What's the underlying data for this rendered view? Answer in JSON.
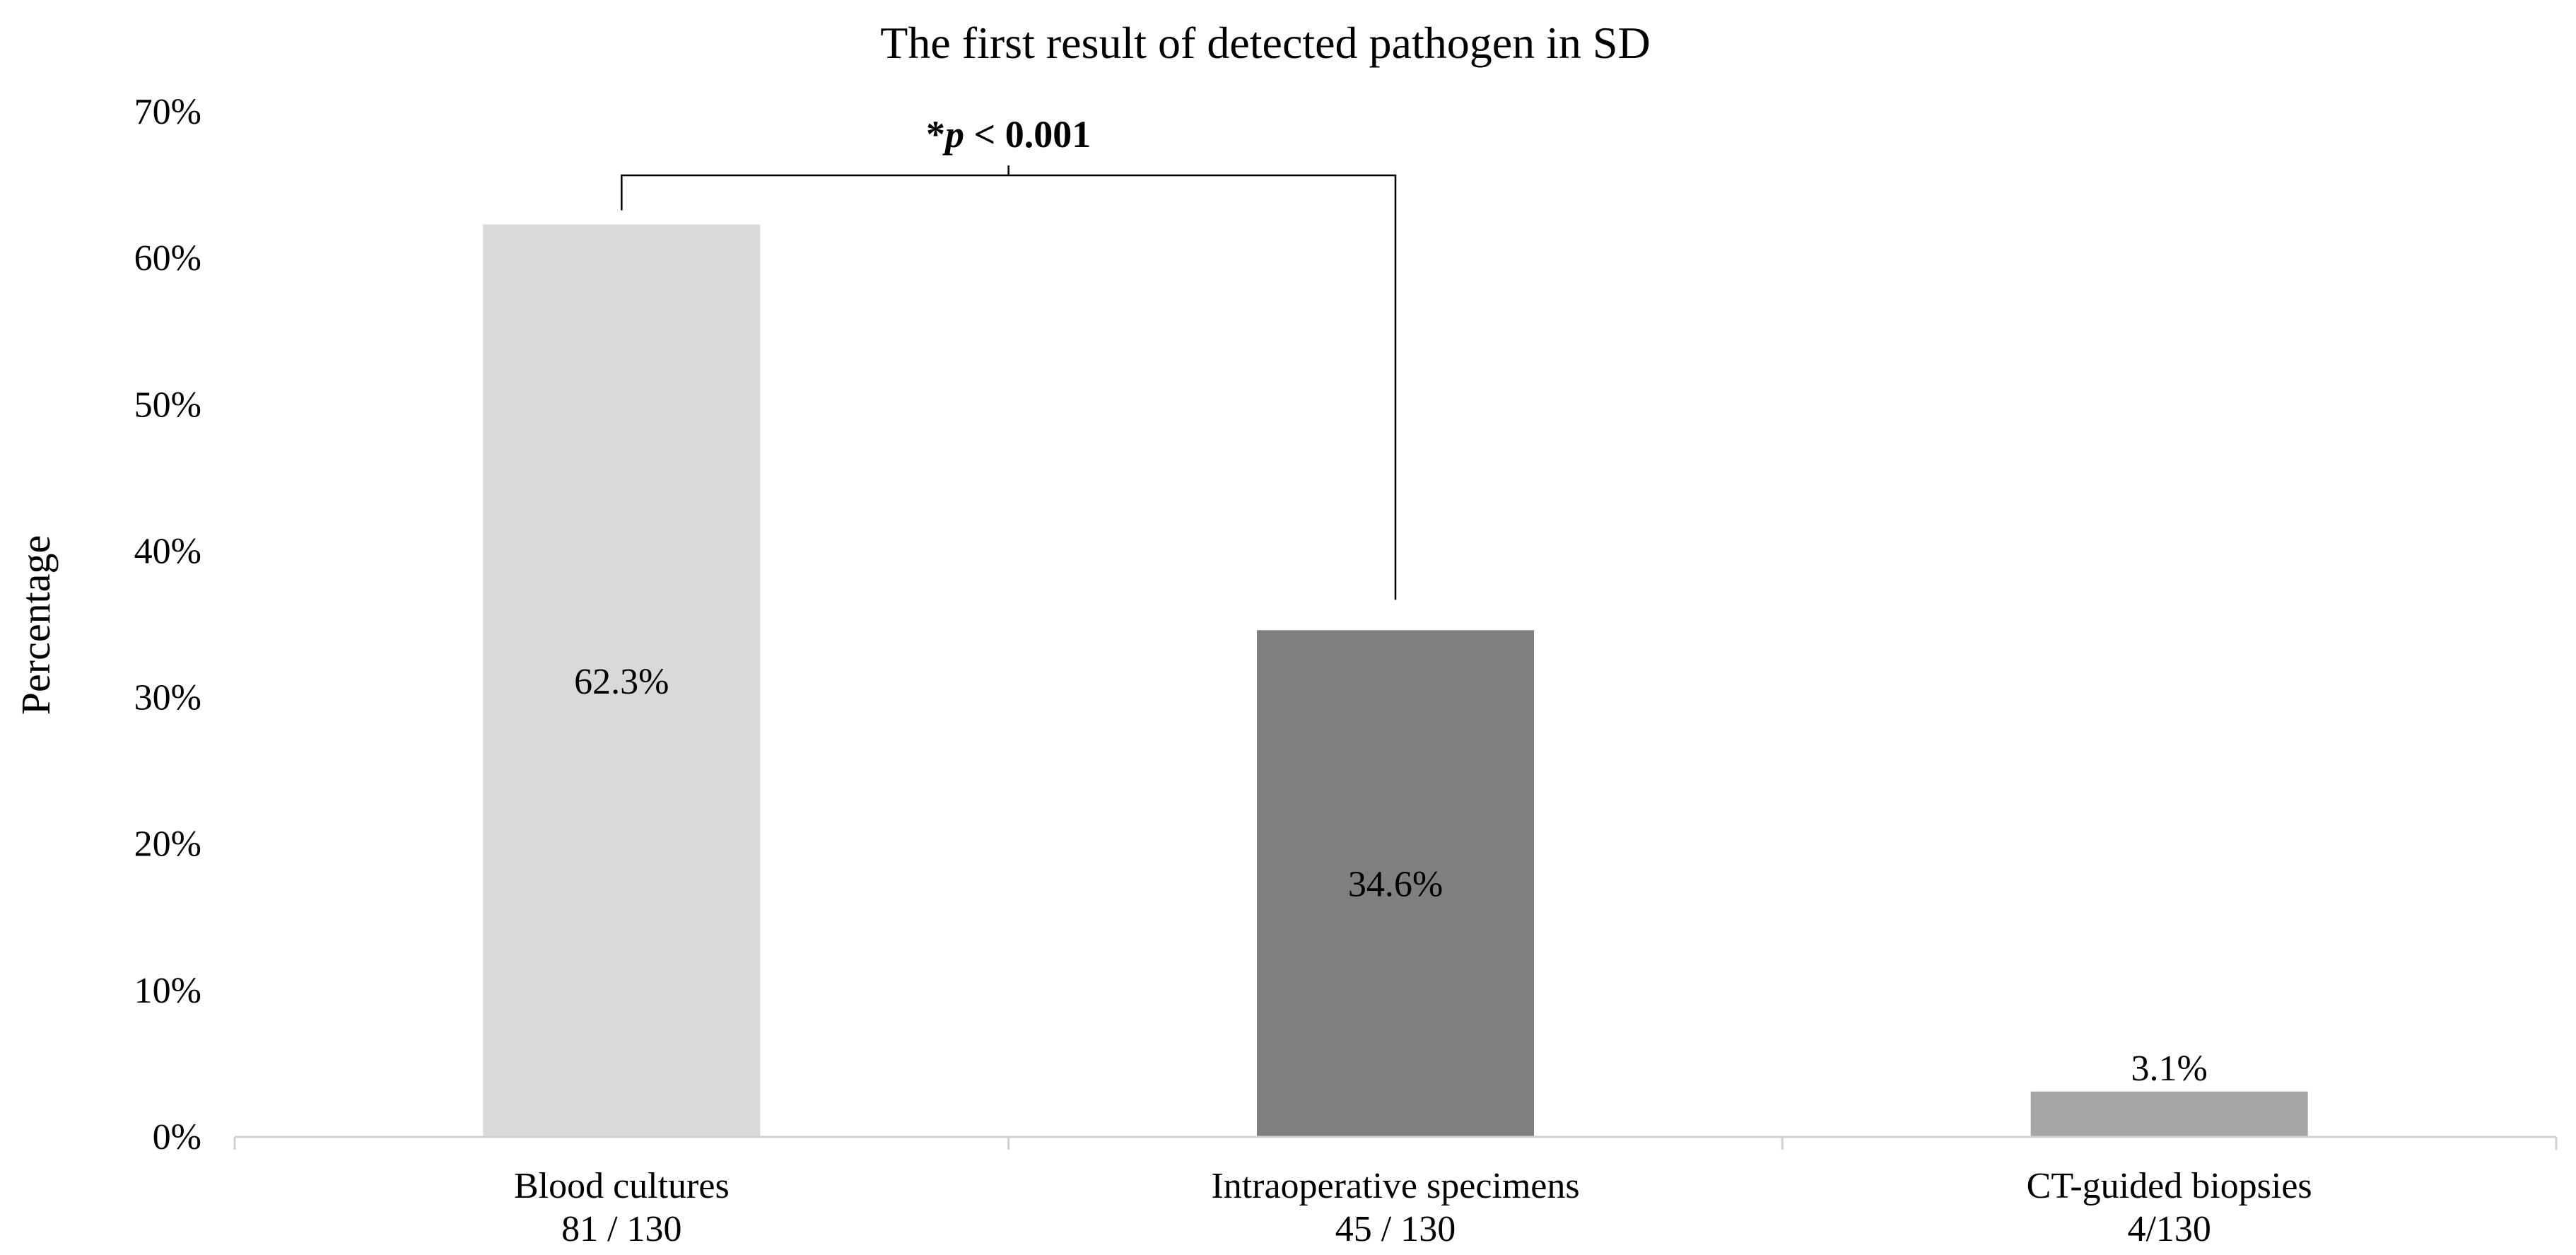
{
  "chart_data": {
    "type": "bar",
    "title": "The first result of detected pathogen in SD",
    "ylabel": "Percentage",
    "xlabel": "",
    "ylim": [
      0,
      70
    ],
    "yticks": [
      0,
      10,
      20,
      30,
      40,
      50,
      60,
      70
    ],
    "ytick_labels": [
      "0%",
      "10%",
      "20%",
      "30%",
      "40%",
      "50%",
      "60%",
      "70%"
    ],
    "grid": false,
    "categories": [
      {
        "name": "Blood cultures",
        "count": "81 / 130"
      },
      {
        "name": "Intraoperative specimens",
        "count": "45 / 130"
      },
      {
        "name": "CT-guided biopsies",
        "count": "4/130"
      }
    ],
    "values": [
      62.3,
      34.6,
      3.1
    ],
    "value_labels": [
      "62.3%",
      "34.6%",
      "3.1%"
    ],
    "bar_colors": [
      "#d9d9d9",
      "#7f7f7f",
      "#a6a6a6"
    ],
    "significance": {
      "between": [
        0,
        1
      ],
      "prefix": "*",
      "p_symbol": "p",
      "rest": " < 0.001"
    }
  }
}
